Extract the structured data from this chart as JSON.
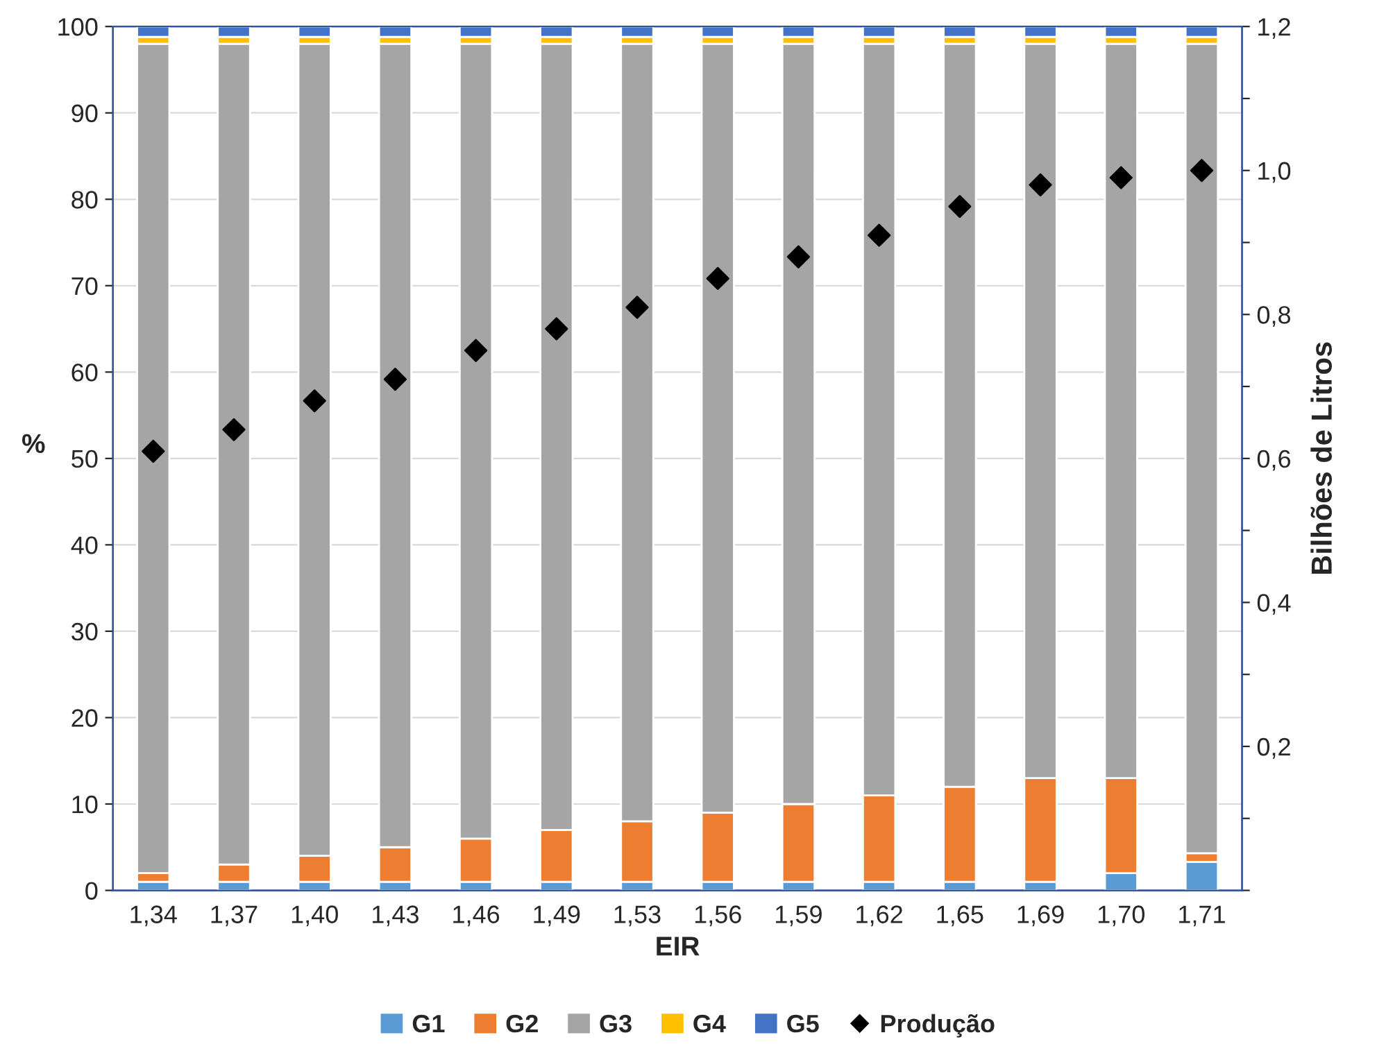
{
  "chart_data": {
    "type": "bar",
    "stacked": true,
    "xlabel": "EIR",
    "ylabel": "%",
    "y2label": "Bilhões de Litros",
    "categories": [
      "1,34",
      "1,37",
      "1,40",
      "1,43",
      "1,46",
      "1,49",
      "1,53",
      "1,56",
      "1,59",
      "1,62",
      "1,65",
      "1,69",
      "1,70",
      "1,71"
    ],
    "series": [
      {
        "name": "G1",
        "color": "#5b9bd5",
        "values": [
          1,
          1,
          1,
          1,
          1,
          1,
          1,
          1,
          1,
          1,
          1,
          1,
          2,
          3.3
        ]
      },
      {
        "name": "G2",
        "color": "#ed7d31",
        "values": [
          1,
          2,
          3,
          4,
          5,
          6,
          7,
          8,
          9,
          10,
          11,
          12,
          11,
          1
        ]
      },
      {
        "name": "G3",
        "color": "#a5a5a5",
        "values": [
          96,
          95,
          94,
          93,
          92,
          91,
          90,
          89,
          88,
          87,
          86,
          85,
          85,
          93.7
        ]
      },
      {
        "name": "G4",
        "color": "#ffc000",
        "values": [
          0.8,
          0.8,
          0.8,
          0.8,
          0.8,
          0.8,
          0.8,
          0.8,
          0.8,
          0.8,
          0.8,
          0.8,
          0.8,
          0.8
        ]
      },
      {
        "name": "G5",
        "color": "#4472c4",
        "values": [
          1.2,
          1.2,
          1.2,
          1.2,
          1.2,
          1.2,
          1.2,
          1.2,
          1.2,
          1.2,
          1.2,
          1.2,
          1.2,
          1.2
        ]
      },
      {
        "name": "Produção",
        "type": "scatter",
        "axis": "y2",
        "marker": "diamond",
        "color": "#000000",
        "values": [
          0.61,
          0.64,
          0.68,
          0.71,
          0.75,
          0.78,
          0.81,
          0.85,
          0.88,
          0.91,
          0.95,
          0.98,
          0.99,
          1.0
        ]
      }
    ],
    "ylim": [
      0,
      100
    ],
    "yticks": [
      0,
      10,
      20,
      30,
      40,
      50,
      60,
      70,
      80,
      90,
      100
    ],
    "y2lim": [
      0,
      1.2
    ],
    "y2ticks": [
      {
        "value": 0,
        "label": null
      },
      {
        "value": 0.1,
        "label": null
      },
      {
        "value": 0.2,
        "label": "0,2"
      },
      {
        "value": 0.3,
        "label": null
      },
      {
        "value": 0.4,
        "label": "0,4"
      },
      {
        "value": 0.5,
        "label": null
      },
      {
        "value": 0.6,
        "label": "0,6"
      },
      {
        "value": 0.7,
        "label": null
      },
      {
        "value": 0.8,
        "label": "0,8"
      },
      {
        "value": 0.9,
        "label": null
      },
      {
        "value": 1.0,
        "label": "1,0"
      },
      {
        "value": 1.1,
        "label": null
      },
      {
        "value": 1.2,
        "label": "1,2"
      }
    ],
    "grid": "y",
    "legend": "bottom"
  }
}
